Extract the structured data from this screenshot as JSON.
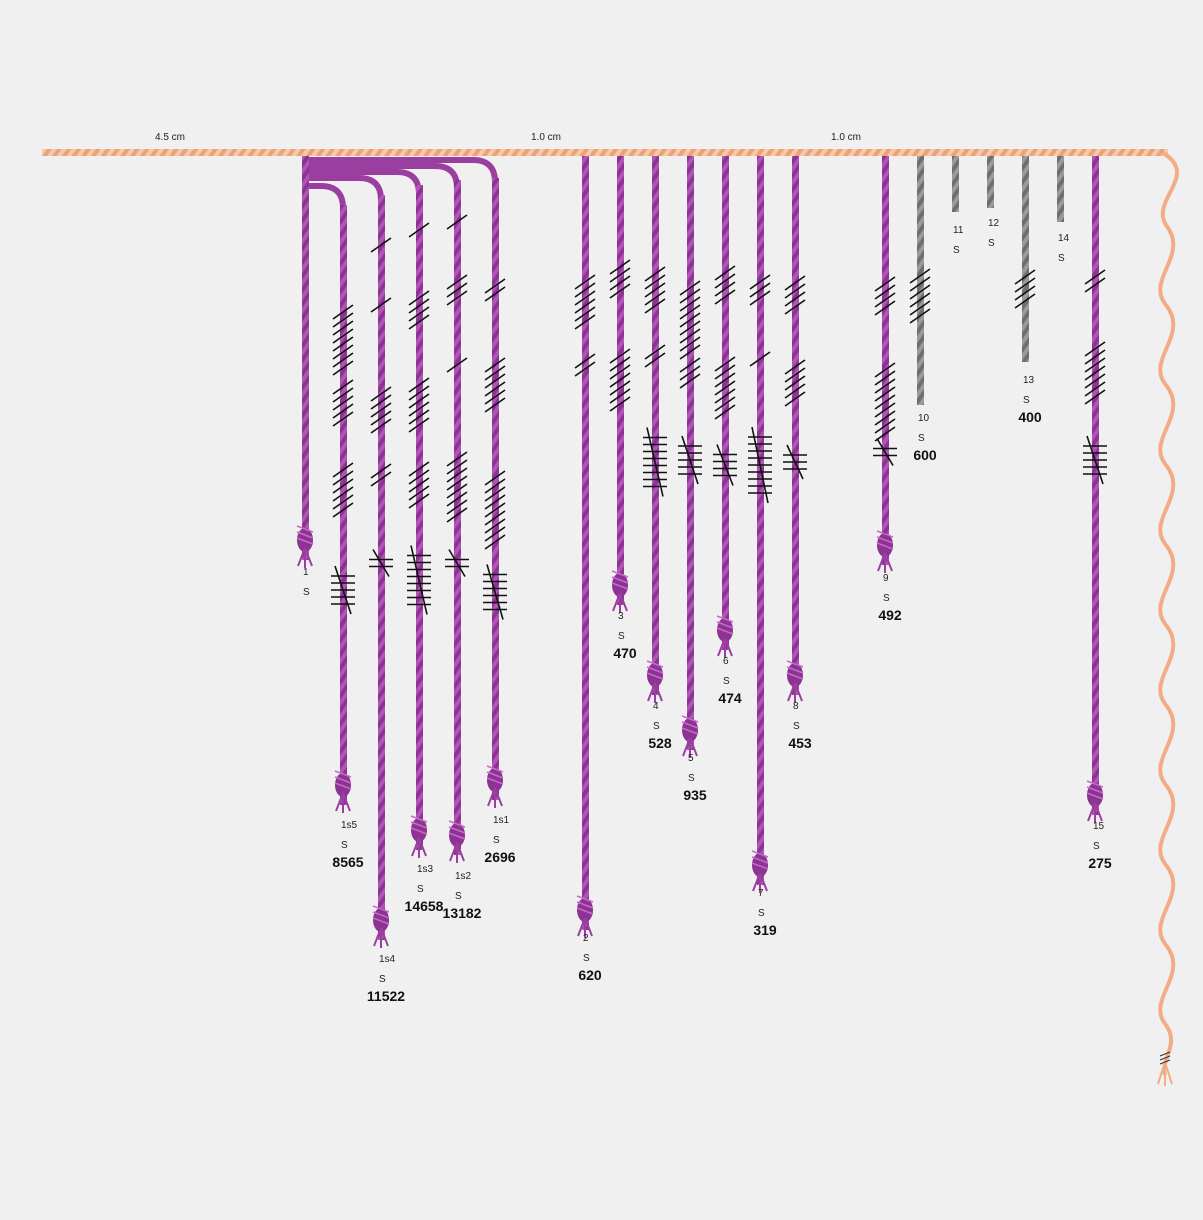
{
  "colors": {
    "background": "#f0f0f0",
    "primary_cord": "#f5b78f",
    "pendant_purple": "#9a3fa0",
    "pendant_gray": "#7f7f7f",
    "knot": "#111111"
  },
  "spacing_labels": [
    "4.5 cm",
    "1.0 cm",
    "1.0 cm"
  ],
  "cords": [
    {
      "id": "c1",
      "label": "1",
      "twist": "S",
      "value": "",
      "color": "purple",
      "knots": [
        {
          "type": "long",
          "count": 0
        }
      ]
    },
    {
      "id": "c1s5",
      "label": "1s5",
      "twist": "S",
      "value": "8565",
      "color": "purple",
      "knots": [
        {
          "type": "single",
          "count": 8
        },
        {
          "type": "single",
          "count": 5
        },
        {
          "type": "single",
          "count": 6
        },
        {
          "type": "long",
          "count": 5
        }
      ]
    },
    {
      "id": "c1s4",
      "label": "1s4",
      "twist": "S",
      "value": "11522",
      "color": "purple",
      "knots": [
        {
          "type": "single",
          "count": 1
        },
        {
          "type": "single",
          "count": 1
        },
        {
          "type": "single",
          "count": 5
        },
        {
          "type": "single",
          "count": 2
        },
        {
          "type": "long",
          "count": 2
        }
      ]
    },
    {
      "id": "c1s3",
      "label": "1s3",
      "twist": "S",
      "value": "14658",
      "color": "purple",
      "knots": [
        {
          "type": "single",
          "count": 1
        },
        {
          "type": "single",
          "count": 4
        },
        {
          "type": "single",
          "count": 6
        },
        {
          "type": "single",
          "count": 5
        },
        {
          "type": "long",
          "count": 8
        }
      ]
    },
    {
      "id": "c1s2",
      "label": "1s2",
      "twist": "S",
      "value": "13182",
      "color": "purple",
      "knots": [
        {
          "type": "single",
          "count": 1
        },
        {
          "type": "single",
          "count": 3
        },
        {
          "type": "single",
          "count": 1
        },
        {
          "type": "single",
          "count": 8
        },
        {
          "type": "long",
          "count": 2
        }
      ]
    },
    {
      "id": "c1s1",
      "label": "1s1",
      "twist": "S",
      "value": "2696",
      "color": "purple",
      "knots": [
        {
          "type": "single",
          "count": 2
        },
        {
          "type": "single",
          "count": 6
        },
        {
          "type": "single",
          "count": 9
        },
        {
          "type": "long",
          "count": 6
        }
      ]
    },
    {
      "id": "c2",
      "label": "2",
      "twist": "S",
      "value": "620",
      "color": "purple",
      "knots": [
        {
          "type": "single",
          "count": 6
        },
        {
          "type": "single",
          "count": 2
        },
        {
          "type": "long",
          "count": 0
        }
      ]
    },
    {
      "id": "c3",
      "label": "3",
      "twist": "S",
      "value": "470",
      "color": "purple",
      "knots": [
        {
          "type": "single",
          "count": 4
        },
        {
          "type": "single",
          "count": 7
        },
        {
          "type": "long",
          "count": 0
        }
      ]
    },
    {
      "id": "c4",
      "label": "4",
      "twist": "S",
      "value": "528",
      "color": "purple",
      "knots": [
        {
          "type": "single",
          "count": 5
        },
        {
          "type": "single",
          "count": 2
        },
        {
          "type": "long",
          "count": 8
        }
      ]
    },
    {
      "id": "c5",
      "label": "5",
      "twist": "S",
      "value": "935",
      "color": "purple",
      "knots": [
        {
          "type": "single",
          "count": 9
        },
        {
          "type": "single",
          "count": 3
        },
        {
          "type": "long",
          "count": 5
        }
      ]
    },
    {
      "id": "c6",
      "label": "6",
      "twist": "S",
      "value": "474",
      "color": "purple",
      "knots": [
        {
          "type": "single",
          "count": 4
        },
        {
          "type": "single",
          "count": 7
        },
        {
          "type": "long",
          "count": 4
        }
      ]
    },
    {
      "id": "c7",
      "label": "7",
      "twist": "S",
      "value": "319",
      "color": "purple",
      "knots": [
        {
          "type": "single",
          "count": 3
        },
        {
          "type": "single",
          "count": 1
        },
        {
          "type": "long",
          "count": 9
        }
      ]
    },
    {
      "id": "c8",
      "label": "8",
      "twist": "S",
      "value": "453",
      "color": "purple",
      "knots": [
        {
          "type": "single",
          "count": 4
        },
        {
          "type": "single",
          "count": 5
        },
        {
          "type": "long",
          "count": 3
        }
      ]
    },
    {
      "id": "c9",
      "label": "9",
      "twist": "S",
      "value": "492",
      "color": "purple",
      "knots": [
        {
          "type": "single",
          "count": 4
        },
        {
          "type": "single",
          "count": 9
        },
        {
          "type": "long",
          "count": 2
        }
      ]
    },
    {
      "id": "c10",
      "label": "10",
      "twist": "S",
      "value": "600",
      "color": "gray",
      "knots": [
        {
          "type": "single",
          "count": 6
        }
      ]
    },
    {
      "id": "c11",
      "label": "11",
      "twist": "S",
      "value": "",
      "color": "gray",
      "knots": []
    },
    {
      "id": "c12",
      "label": "12",
      "twist": "S",
      "value": "",
      "color": "gray",
      "knots": []
    },
    {
      "id": "c13",
      "label": "13",
      "twist": "S",
      "value": "400",
      "color": "gray",
      "knots": [
        {
          "type": "single",
          "count": 4
        }
      ]
    },
    {
      "id": "c14",
      "label": "14",
      "twist": "S",
      "value": "",
      "color": "gray",
      "knots": []
    },
    {
      "id": "c15",
      "label": "15",
      "twist": "S",
      "value": "275",
      "color": "purple",
      "knots": [
        {
          "type": "single",
          "count": 2
        },
        {
          "type": "single",
          "count": 7
        },
        {
          "type": "long",
          "count": 5
        }
      ]
    }
  ]
}
